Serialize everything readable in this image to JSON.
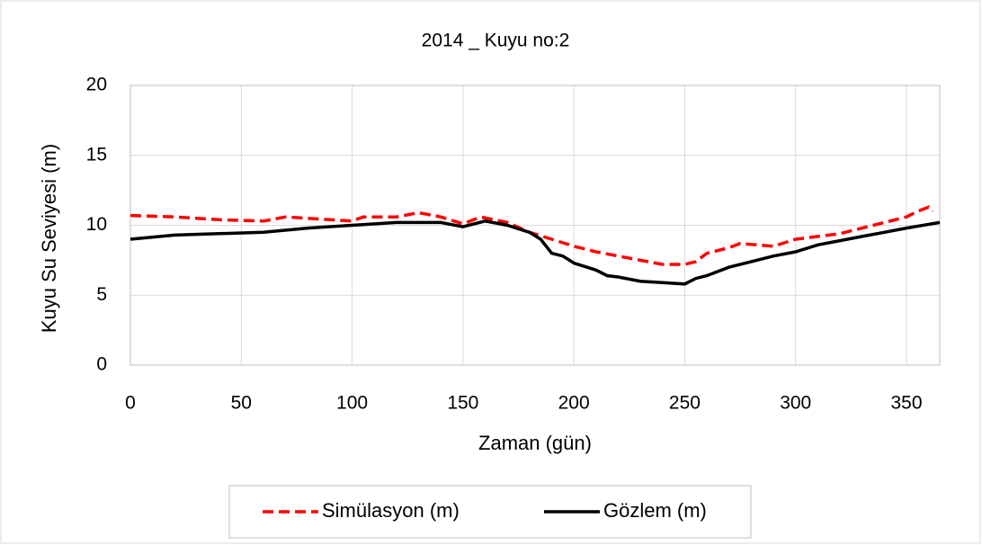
{
  "chart_data": {
    "type": "line",
    "title": "2014 _ Kuyu no:2",
    "x_label": "Zaman (gün)",
    "y_label": "Kuyu Su Seviyesi (m)",
    "xlim": [
      0,
      365
    ],
    "xticks": [
      0,
      50,
      100,
      150,
      200,
      250,
      300,
      350
    ],
    "ylim": [
      0,
      20
    ],
    "yticks": [
      0,
      5,
      10,
      15,
      20
    ],
    "grid": true,
    "legend": "bottom",
    "series": [
      {
        "name": "Simülasyon (m)",
        "color": "#ff0000",
        "dash": true,
        "x": [
          0,
          20,
          40,
          60,
          70,
          90,
          100,
          105,
          120,
          130,
          140,
          150,
          158,
          170,
          180,
          190,
          200,
          210,
          220,
          230,
          240,
          250,
          255,
          260,
          270,
          275,
          290,
          300,
          310,
          320,
          330,
          340,
          350,
          355,
          360,
          362
        ],
        "values": [
          10.7,
          10.6,
          10.4,
          10.3,
          10.6,
          10.4,
          10.3,
          10.6,
          10.6,
          10.9,
          10.6,
          10.1,
          10.6,
          10.2,
          9.5,
          9.0,
          8.5,
          8.1,
          7.8,
          7.5,
          7.2,
          7.2,
          7.4,
          8.0,
          8.4,
          8.7,
          8.5,
          9.0,
          9.2,
          9.4,
          9.8,
          10.2,
          10.6,
          11.0,
          11.3,
          11.0
        ]
      },
      {
        "name": "Gözlem (m)",
        "color": "#000000",
        "dash": false,
        "x": [
          0,
          20,
          40,
          60,
          80,
          100,
          120,
          130,
          140,
          150,
          160,
          170,
          180,
          185,
          190,
          195,
          200,
          210,
          215,
          220,
          230,
          240,
          250,
          255,
          260,
          270,
          280,
          290,
          300,
          310,
          320,
          330,
          340,
          350,
          365
        ],
        "values": [
          9.0,
          9.3,
          9.4,
          9.5,
          9.8,
          10.0,
          10.2,
          10.2,
          10.2,
          9.9,
          10.3,
          10.0,
          9.5,
          9.0,
          8.0,
          7.8,
          7.3,
          6.8,
          6.4,
          6.3,
          6.0,
          5.9,
          5.8,
          6.2,
          6.4,
          7.0,
          7.4,
          7.8,
          8.1,
          8.6,
          8.9,
          9.2,
          9.5,
          9.8,
          10.2
        ]
      }
    ]
  }
}
